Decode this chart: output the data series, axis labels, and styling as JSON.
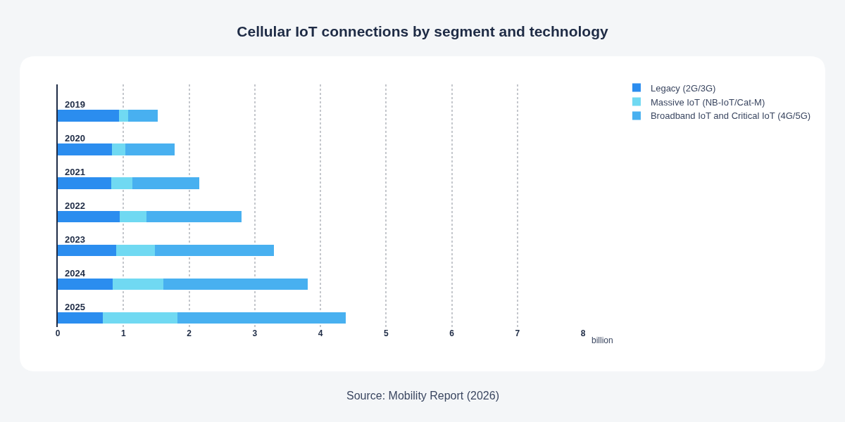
{
  "chart_data": {
    "type": "bar",
    "orientation": "horizontal",
    "stacked": true,
    "title": "Cellular IoT connections by segment and technology",
    "xlabel": "billion",
    "categories": [
      "2019",
      "2020",
      "2021",
      "2022",
      "2023",
      "2024",
      "2025"
    ],
    "series": [
      {
        "name": "Legacy (2G/3G)",
        "color": "#2b8def",
        "values": [
          0.93,
          0.83,
          0.82,
          0.94,
          0.89,
          0.84,
          0.69
        ]
      },
      {
        "name": "Massive IoT (NB-IoT/Cat-M)",
        "color": "#70d9f2",
        "values": [
          0.14,
          0.2,
          0.32,
          0.41,
          0.59,
          0.77,
          1.13
        ]
      },
      {
        "name": "Broadband IoT and Critical IoT (4G/5G)",
        "color": "#48b0f0",
        "values": [
          0.45,
          0.75,
          1.02,
          1.45,
          1.81,
          2.2,
          2.57
        ]
      }
    ],
    "xlim": [
      0,
      8
    ],
    "xticks": [
      0,
      1,
      2,
      3,
      4,
      5,
      6,
      7,
      8
    ],
    "grid": "x",
    "legend": "top right",
    "tick_labels": "x",
    "annotations": [
      "Source: Mobility Report (2026)"
    ]
  }
}
